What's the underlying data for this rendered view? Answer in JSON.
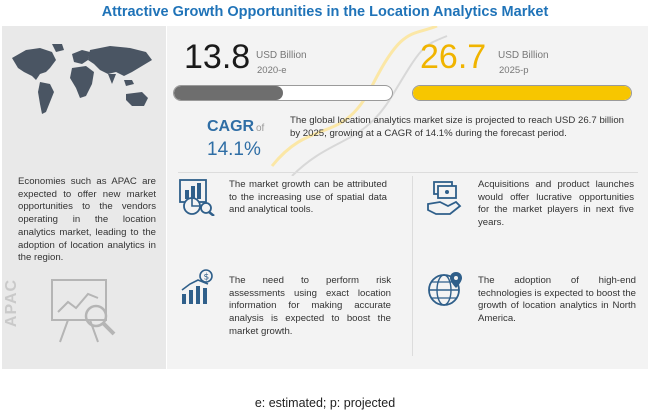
{
  "title": "Attractive Growth Opportunities in the Location Analytics Market",
  "market": {
    "start": {
      "value": "13.8",
      "unit": "USD Billion",
      "year": "2020-e"
    },
    "end": {
      "value": "26.7",
      "unit": "USD Billion",
      "year": "2025-p"
    },
    "progress_fraction": 0.5
  },
  "cagr": {
    "label": "CAGR",
    "of": "of",
    "value": "14.1%"
  },
  "summary": "The global location analytics market size is projected to reach USD 26.7 billion by 2025, growing at a CAGR of 14.1% during the forecast period.",
  "apac": {
    "label": "APAC",
    "text": "Economies such as APAC are expected to offer new market opportunities to the vendors operating in the location analytics market, leading to the adoption of location analytics in the region."
  },
  "features": [
    {
      "icon": "spatial-data-icon",
      "text": "The market growth can be attributed to the increasing use of spatial data and analytical tools."
    },
    {
      "icon": "acquisitions-icon",
      "text": "Acquisitions and product launches would offer lucrative opportunities for the market players in next five years."
    },
    {
      "icon": "risk-assessment-icon",
      "text": "The need to perform risk assessments using exact location information for making accurate analysis is expected to boost the market growth."
    },
    {
      "icon": "globe-location-icon",
      "text": "The adoption of high-end technologies is expected to boost the growth of location analytics in North America."
    }
  ],
  "colors": {
    "title": "#1f73b8",
    "accent_yellow": "#f7c600",
    "cagr_blue": "#2f6ea5",
    "bar_gray": "#6e6e6e"
  },
  "footnote": "e: estimated; p: projected"
}
